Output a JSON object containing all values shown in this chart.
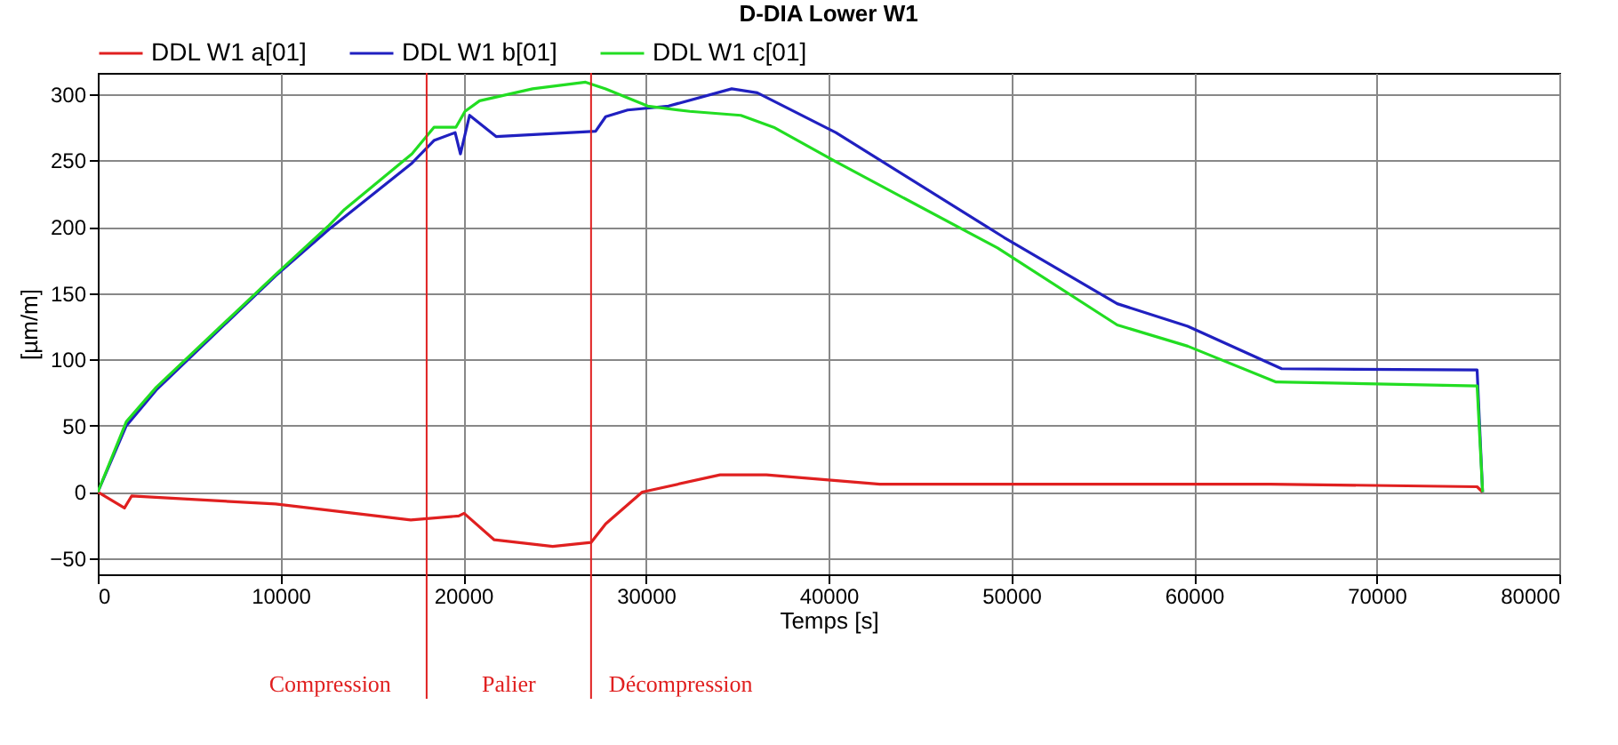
{
  "chart_data": {
    "type": "line",
    "title": "D-DIA Lower W1",
    "xlabel": "Temps [s]",
    "ylabel": "[µm/m]",
    "xlim": [
      0,
      80000
    ],
    "xticks": [
      0,
      10000,
      20000,
      30000,
      40000,
      50000,
      60000,
      70000,
      80000
    ],
    "ylim": [
      -62,
      316
    ],
    "yticks": [
      -50,
      0,
      50,
      100,
      150,
      200,
      250,
      300
    ],
    "grid": true,
    "legend": "top",
    "line_style": "solid",
    "marker": "none",
    "series": [
      {
        "name": "DDL W1 a[01]",
        "color": "#e02020",
        "x": [
          0,
          1460,
          1850,
          9730,
          17130,
          19760,
          20050,
          21700,
          24900,
          27000,
          27800,
          29800,
          34060,
          36600,
          42800,
          64200,
          75500,
          75800
        ],
        "values": [
          0,
          -12,
          -3,
          -9,
          -21,
          -18,
          -16,
          -36,
          -41,
          -38,
          -24,
          0,
          13,
          13,
          6,
          6,
          4,
          0
        ]
      },
      {
        "name": "DDL W1 b[01]",
        "color": "#2020c0",
        "x": [
          0,
          1560,
          3200,
          9730,
          12650,
          17200,
          18400,
          19560,
          19850,
          20350,
          21800,
          27250,
          27800,
          29000,
          31240,
          34700,
          36100,
          40400,
          49600,
          55800,
          59660,
          64800,
          75500,
          75800
        ],
        "values": [
          0,
          50,
          77,
          163,
          198,
          248,
          265,
          271,
          255,
          284,
          268,
          272,
          283,
          288,
          291,
          304,
          301,
          271,
          192,
          142,
          125,
          93,
          92,
          0
        ]
      },
      {
        "name": "DDL W1 c[01]",
        "color": "#22dd22",
        "x": [
          0,
          1560,
          3200,
          9730,
          12650,
          13500,
          17200,
          18400,
          19600,
          20100,
          20900,
          23800,
          26700,
          27800,
          30100,
          32400,
          35200,
          37000,
          40400,
          49250,
          55800,
          59660,
          64500,
          75500,
          75800
        ],
        "values": [
          0,
          53,
          79,
          164,
          201,
          213,
          255,
          275,
          275,
          287,
          295,
          304,
          309,
          304,
          291,
          287,
          284,
          275,
          249,
          184,
          126,
          110,
          83,
          80,
          0
        ]
      }
    ],
    "ref_lines": [
      {
        "axis": "x",
        "value": 18000,
        "color": "#e02020"
      },
      {
        "axis": "x",
        "value": 27000,
        "color": "#e02020"
      }
    ],
    "annotations": [
      "Compression",
      "Palier",
      "Décompression"
    ]
  }
}
